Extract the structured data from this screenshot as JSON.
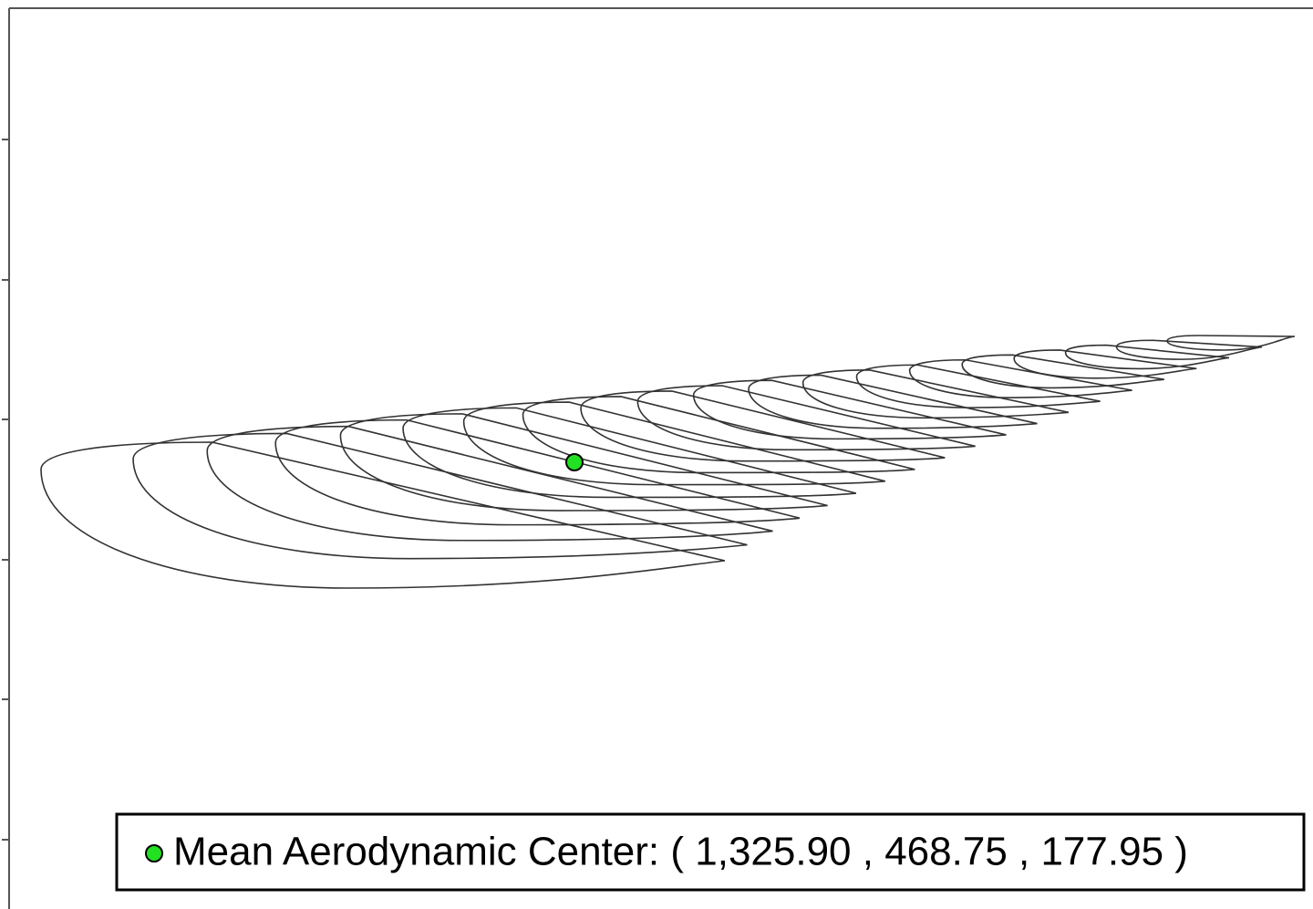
{
  "legend": {
    "label": "Mean Aerodynamic Center: ( 1,325.90 , 468.75 , 177.95 )"
  }
}
